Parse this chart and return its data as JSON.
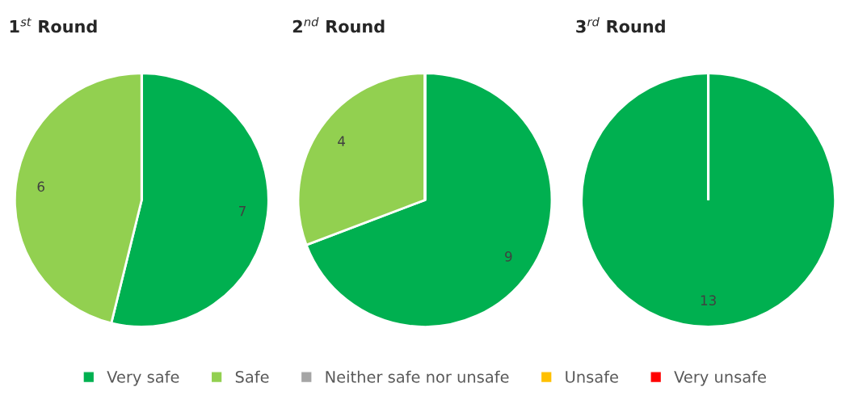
{
  "chart_data": [
    {
      "type": "pie",
      "title": "1$^{st}$ Round",
      "categories": [
        "Very safe",
        "Safe",
        "Neither safe nor unsafe",
        "Unsafe",
        "Very unsafe"
      ],
      "values": [
        7,
        6,
        0,
        0,
        0
      ],
      "colors": [
        "#00b050",
        "#92d050",
        "#a5a5a5",
        "#ffc000",
        "#ff0000"
      ],
      "value_labels": [
        "7",
        "6",
        null,
        null,
        null
      ],
      "legend": "bottom"
    },
    {
      "type": "pie",
      "title": "2$^{nd}$ Round",
      "categories": [
        null,
        null,
        null,
        null,
        null
      ],
      "values": [
        9,
        4,
        0,
        0,
        0
      ],
      "colors": [
        "#00b050",
        "#92d050",
        "#a5a5a5",
        "#ffc000",
        "#ff0000"
      ],
      "value_labels": [
        "9",
        "4",
        null,
        null,
        null
      ]
    },
    {
      "type": "pie",
      "title": "3$^{rd}$ Round",
      "categories": [
        null,
        null,
        null,
        null,
        null
      ],
      "values": [
        13,
        0,
        0,
        0,
        0
      ],
      "colors": [
        "#00b050",
        "#92d050",
        "#a5a5a5",
        "#ffc000",
        "#ff0000"
      ],
      "value_labels": [
        "13",
        null,
        null,
        null,
        null
      ]
    }
  ]
}
